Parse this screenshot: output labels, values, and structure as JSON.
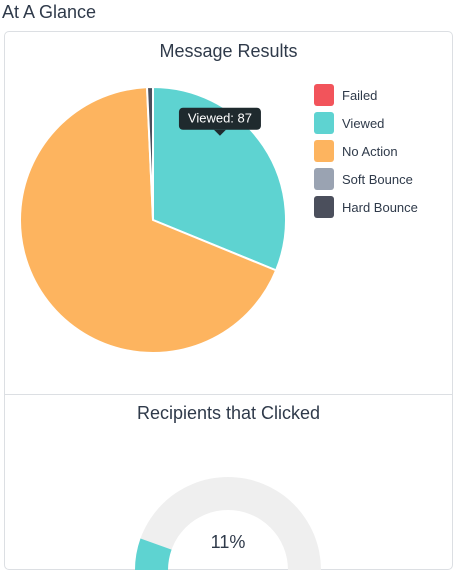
{
  "page": {
    "title": "At A Glance"
  },
  "pie_chart": {
    "title": "Message Results",
    "tooltip": "Viewed: 87"
  },
  "gauge_chart": {
    "title": "Recipients that Clicked",
    "value_label": "11%"
  },
  "chart_data": [
    {
      "type": "pie",
      "title": "Message Results",
      "categories": [
        "Failed",
        "Viewed",
        "No Action",
        "Soft Bounce",
        "Hard Bounce"
      ],
      "values": [
        0,
        87,
        190,
        0,
        2
      ],
      "colors": [
        "#f2545b",
        "#5ed3d1",
        "#fdb45f",
        "#9aa3b2",
        "#4b4f5c"
      ],
      "legend_position": "right",
      "tooltip": {
        "category": "Viewed",
        "value": 87
      }
    },
    {
      "type": "gauge",
      "title": "Recipients that Clicked",
      "value_percent": 11,
      "label": "11%",
      "fill_color": "#5ed3d1",
      "track_color": "#efefef"
    }
  ]
}
